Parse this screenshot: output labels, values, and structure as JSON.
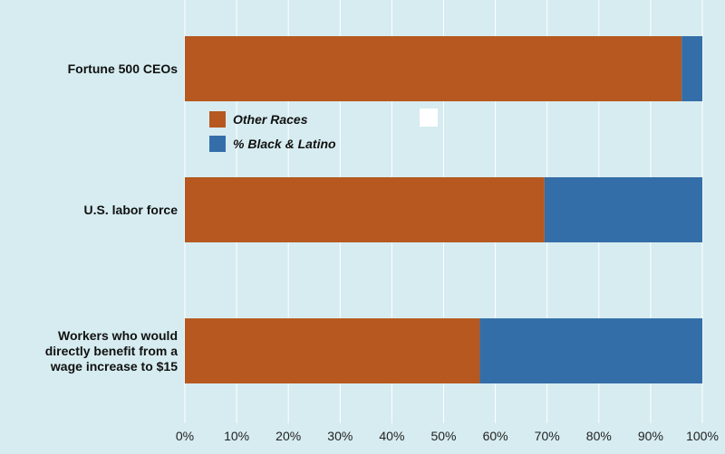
{
  "chart_data": {
    "type": "bar",
    "orientation": "horizontal",
    "stacked": true,
    "title": "",
    "xlabel": "",
    "ylabel": "",
    "categories": [
      [
        "Fortune 500 CEOs"
      ],
      [
        "U.S. labor force"
      ],
      [
        "Workers who would",
        "directly benefit from a",
        "wage increase to $15"
      ]
    ],
    "series": [
      {
        "name": "Other Races",
        "values": [
          96,
          69.5,
          57
        ],
        "color": "#b6581f"
      },
      {
        "name": "% Black & Latino",
        "values": [
          4,
          30.5,
          43
        ],
        "color": "#346ea8"
      }
    ],
    "xlim": [
      0,
      100
    ],
    "x_ticks": [
      0,
      10,
      20,
      30,
      40,
      50,
      60,
      70,
      80,
      90,
      100
    ],
    "x_tick_labels": [
      "0%",
      "10%",
      "20%",
      "30%",
      "40%",
      "50%",
      "60%",
      "70%",
      "80%",
      "90%",
      "100%"
    ],
    "grid": true,
    "legend": "upper-left",
    "background_color": "#d6ecf0",
    "grid_color": "#ffffff"
  }
}
